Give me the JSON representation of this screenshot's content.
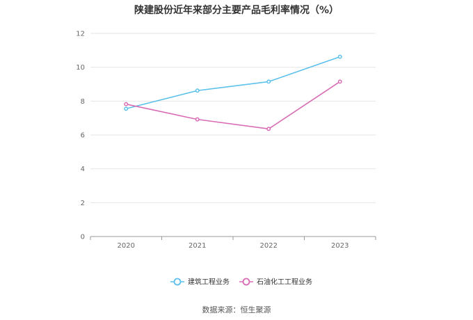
{
  "chart_data": {
    "type": "line",
    "title": "陕建股份近年来部分主要产品毛利率情况（%）",
    "categories": [
      "2020",
      "2021",
      "2022",
      "2023"
    ],
    "series": [
      {
        "name": "建筑工程业务",
        "values": [
          7.55,
          8.62,
          9.15,
          10.62
        ],
        "color": "#5bc0eb"
      },
      {
        "name": "石油化工工程业务",
        "values": [
          7.82,
          6.92,
          6.36,
          9.15
        ],
        "color": "#d96bb5"
      }
    ],
    "ylim": [
      0,
      12
    ],
    "yticks": [
      0,
      2,
      4,
      6,
      8,
      10,
      12
    ],
    "grid": true,
    "legend_position": "bottom"
  },
  "source_note": "数据来源：恒生聚源"
}
